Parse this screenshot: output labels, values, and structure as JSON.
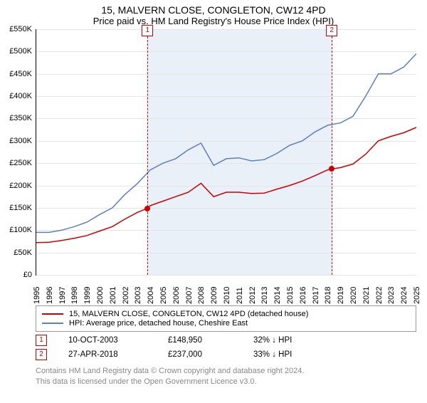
{
  "title": "15, MALVERN CLOSE, CONGLETON, CW12 4PD",
  "subtitle": "Price paid vs. HM Land Registry's House Price Index (HPI)",
  "chart": {
    "type": "line",
    "background_color": "#ffffff",
    "shaded_band_color": "#eaf0f8",
    "grid_color": "#e5e5e5",
    "axis_color": "#000000",
    "x_start_year": 1995,
    "x_end_year": 2025,
    "x_ticks": [
      1995,
      1996,
      1997,
      1998,
      1999,
      2000,
      2001,
      2002,
      2003,
      2004,
      2005,
      2006,
      2007,
      2008,
      2009,
      2010,
      2011,
      2012,
      2013,
      2014,
      2015,
      2016,
      2017,
      2018,
      2019,
      2020,
      2021,
      2022,
      2023,
      2024,
      2025
    ],
    "ylim": [
      0,
      550000
    ],
    "ytick_step": 50000,
    "ytick_labels": [
      "£0",
      "£50K",
      "£100K",
      "£150K",
      "£200K",
      "£250K",
      "£300K",
      "£350K",
      "£400K",
      "£450K",
      "£500K",
      "£550K"
    ],
    "label_fontsize": 11,
    "shaded_from_year": 2003.78,
    "shaded_to_year": 2018.32,
    "markers": [
      {
        "n": "1",
        "year": 2003.78
      },
      {
        "n": "2",
        "year": 2018.32
      }
    ],
    "series": [
      {
        "name": "price_paid",
        "color": "#cc0000",
        "width": 1.5,
        "x": [
          1995,
          1996,
          1997,
          1998,
          1999,
          2000,
          2001,
          2002,
          2003,
          2003.78,
          2004,
          2005,
          2006,
          2007,
          2008,
          2009,
          2010,
          2011,
          2012,
          2013,
          2014,
          2015,
          2016,
          2017,
          2018,
          2018.32,
          2019,
          2020,
          2021,
          2022,
          2023,
          2024,
          2025
        ],
        "y": [
          72000,
          73000,
          77000,
          82000,
          88000,
          98000,
          108000,
          125000,
          140000,
          148950,
          155000,
          165000,
          175000,
          185000,
          205000,
          175000,
          185000,
          185000,
          182000,
          183000,
          192000,
          200000,
          210000,
          222000,
          235000,
          237000,
          240000,
          248000,
          270000,
          300000,
          310000,
          318000,
          330000
        ]
      },
      {
        "name": "hpi",
        "color": "#5b7fc7",
        "width": 1.5,
        "x": [
          1995,
          1996,
          1997,
          1998,
          1999,
          2000,
          2001,
          2002,
          2003,
          2004,
          2005,
          2006,
          2007,
          2008,
          2009,
          2010,
          2011,
          2012,
          2013,
          2014,
          2015,
          2016,
          2017,
          2018,
          2019,
          2020,
          2021,
          2022,
          2023,
          2024,
          2025
        ],
        "y": [
          95000,
          95000,
          100000,
          108000,
          118000,
          135000,
          150000,
          180000,
          205000,
          235000,
          250000,
          260000,
          280000,
          295000,
          245000,
          260000,
          262000,
          255000,
          258000,
          272000,
          290000,
          300000,
          320000,
          335000,
          340000,
          355000,
          400000,
          450000,
          450000,
          465000,
          495000
        ]
      }
    ],
    "sale_dots": [
      {
        "year": 2003.78,
        "value": 148950,
        "color": "#cc0000"
      },
      {
        "year": 2018.32,
        "value": 237000,
        "color": "#cc0000"
      }
    ]
  },
  "legend": {
    "items": [
      {
        "color": "#cc0000",
        "label": "15, MALVERN CLOSE, CONGLETON, CW12 4PD (detached house)"
      },
      {
        "color": "#5b7fc7",
        "label": "HPI: Average price, detached house, Cheshire East"
      }
    ]
  },
  "sales": [
    {
      "n": "1",
      "date": "10-OCT-2003",
      "price": "£148,950",
      "delta": "32% ↓ HPI"
    },
    {
      "n": "2",
      "date": "27-APR-2018",
      "price": "£237,000",
      "delta": "33% ↓ HPI"
    }
  ],
  "footnote_line1": "Contains HM Land Registry data © Crown copyright and database right 2024.",
  "footnote_line2": "This data is licensed under the Open Government Licence v3.0."
}
